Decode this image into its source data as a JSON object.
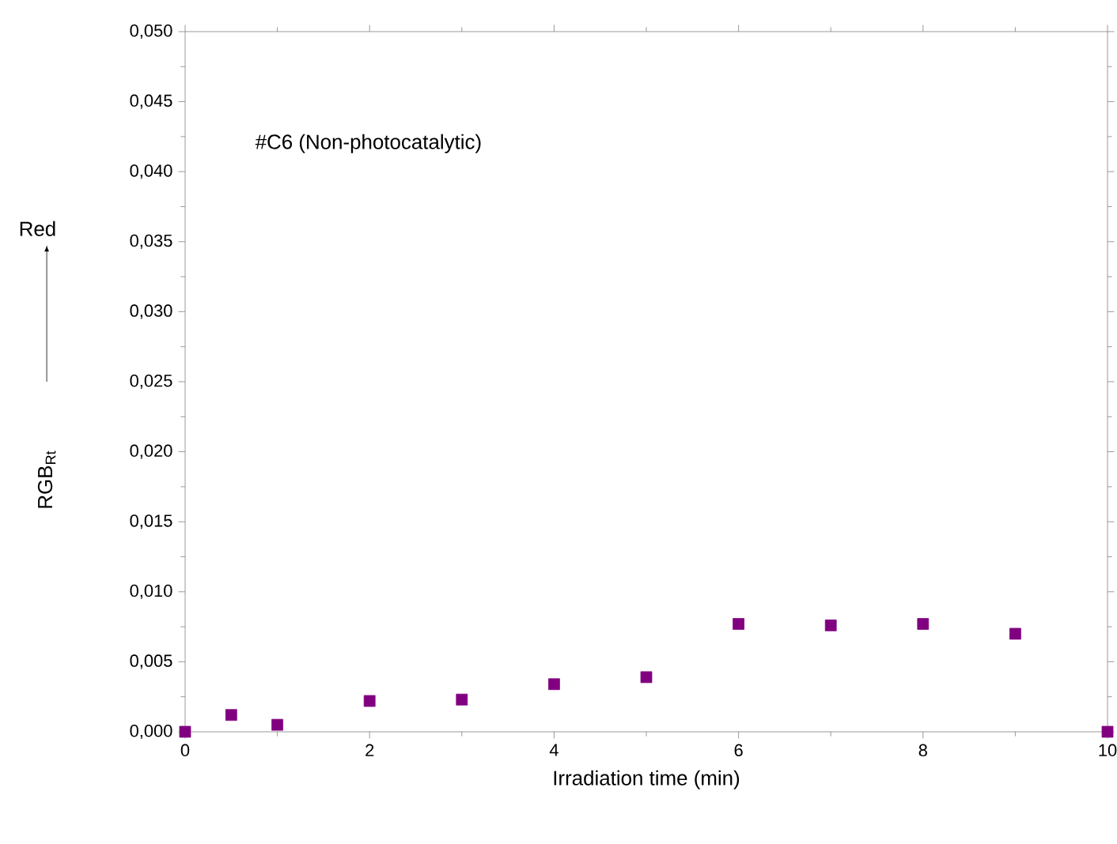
{
  "chart_data": {
    "type": "scatter",
    "xlabel": "Irradiation time (min)",
    "ylabel": "RGB$_{Rt}$",
    "annotations": [
      "#C6 (Non-photocatalytic)",
      "Red"
    ],
    "x": [
      0,
      0.5,
      1,
      2,
      3,
      4,
      5,
      6,
      7,
      8,
      9,
      10
    ],
    "series": [
      {
        "color": "#800080",
        "values": [
          0,
          0.0012,
          0.0005,
          0.0022,
          0.0023,
          0.0034,
          0.0039,
          0.0077,
          0.0076,
          0.0077,
          0.007,
          0
        ]
      }
    ],
    "marker": "square",
    "grid": false,
    "xlim": [
      0,
      10
    ],
    "ylim": [
      0,
      0.05
    ],
    "xticks": [
      0,
      2,
      4,
      6,
      8,
      10
    ],
    "yticks": [
      {
        "value": 0,
        "label": "0,000"
      },
      {
        "value": 0.005,
        "label": "0,005"
      },
      {
        "value": 0.01,
        "label": "0,010"
      },
      {
        "value": 0.015,
        "label": "0,015"
      },
      {
        "value": 0.02,
        "label": "0,020"
      },
      {
        "value": 0.025,
        "label": "0,025"
      },
      {
        "value": 0.03,
        "label": "0,030"
      },
      {
        "value": 0.035,
        "label": "0,035"
      },
      {
        "value": 0.04,
        "label": "0,040"
      },
      {
        "value": 0.045,
        "label": "0,045"
      },
      {
        "value": 0.05,
        "label": "0,050"
      }
    ]
  }
}
